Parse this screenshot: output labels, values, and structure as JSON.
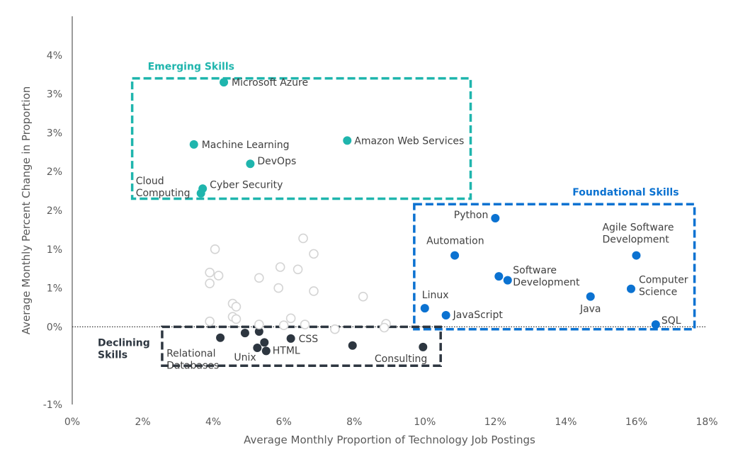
{
  "chart_data": {
    "type": "scatter",
    "xlabel": "Average Monthly Proportion of Technology Job Postings",
    "ylabel": "Average Monthly Percent Change in Proportion",
    "xlim": [
      0,
      18
    ],
    "ylim": [
      -1,
      4
    ],
    "x_ticks": [
      {
        "value": 0,
        "label": "0%"
      },
      {
        "value": 2,
        "label": "2%"
      },
      {
        "value": 4,
        "label": "4%"
      },
      {
        "value": 6,
        "label": "6%"
      },
      {
        "value": 8,
        "label": "8%"
      },
      {
        "value": 10,
        "label": "10%"
      },
      {
        "value": 12,
        "label": "12%"
      },
      {
        "value": 14,
        "label": "14%"
      },
      {
        "value": 16,
        "label": "16%"
      },
      {
        "value": 18,
        "label": "18%"
      }
    ],
    "y_ticks": [
      {
        "value": -1,
        "label": "-1%"
      },
      {
        "value": 0,
        "label": "0%"
      },
      {
        "value": 0.5,
        "label": "1%"
      },
      {
        "value": 1,
        "label": "1%"
      },
      {
        "value": 1.5,
        "label": "2%"
      },
      {
        "value": 2,
        "label": "2%"
      },
      {
        "value": 2.5,
        "label": "3%"
      },
      {
        "value": 3,
        "label": "3%"
      },
      {
        "value": 3.5,
        "label": "4%"
      }
    ],
    "zero_line": true,
    "groups": [
      {
        "key": "emerging",
        "title": "Emerging Skills",
        "color": "#1fb5ad",
        "box": {
          "x0": 1.7,
          "x1": 11.3,
          "y0": 1.65,
          "y1": 3.2
        },
        "points": [
          {
            "label": "Microsoft Azure",
            "x": 4.3,
            "y": 3.15
          },
          {
            "label": "Machine Learning",
            "x": 3.45,
            "y": 2.35
          },
          {
            "label": "Amazon Web Services",
            "x": 7.8,
            "y": 2.4
          },
          {
            "label": "DevOps",
            "x": 5.05,
            "y": 2.1
          },
          {
            "label": "Cyber Security",
            "x": 3.7,
            "y": 1.78
          },
          {
            "label": "Cloud Computing",
            "x": 3.65,
            "y": 1.72
          }
        ]
      },
      {
        "key": "foundational",
        "title": "Foundational Skills",
        "color": "#0b72d1",
        "box": {
          "x0": 9.7,
          "x1": 17.65,
          "y0": -0.03,
          "y1": 1.58
        },
        "points": [
          {
            "label": "Python",
            "x": 12.0,
            "y": 1.4
          },
          {
            "label": "Automation",
            "x": 10.85,
            "y": 0.92
          },
          {
            "label": "Agile Software Development",
            "x": 16.0,
            "y": 0.92
          },
          {
            "label": "Software Development",
            "x": 12.1,
            "y": 0.65
          },
          {
            "label": "",
            "x": 12.35,
            "y": 0.6
          },
          {
            "label": "Computer Science",
            "x": 15.85,
            "y": 0.49
          },
          {
            "label": "Java",
            "x": 14.7,
            "y": 0.39
          },
          {
            "label": "Linux",
            "x": 10.0,
            "y": 0.24
          },
          {
            "label": "JavaScript",
            "x": 10.6,
            "y": 0.15
          },
          {
            "label": "SQL",
            "x": 16.55,
            "y": 0.03
          }
        ]
      },
      {
        "key": "declining",
        "title": "Declining Skills",
        "color": "#2d3640",
        "box": {
          "x0": 2.55,
          "x1": 10.45,
          "y0": -0.5,
          "y1": 0.0
        },
        "points": [
          {
            "label": "Relational Databases",
            "x": 4.2,
            "y": -0.14
          },
          {
            "label": "",
            "x": 4.9,
            "y": -0.08
          },
          {
            "label": "",
            "x": 5.3,
            "y": -0.06
          },
          {
            "label": "",
            "x": 5.45,
            "y": -0.2
          },
          {
            "label": "Unix",
            "x": 5.25,
            "y": -0.27
          },
          {
            "label": "HTML",
            "x": 5.5,
            "y": -0.31
          },
          {
            "label": "CSS",
            "x": 6.2,
            "y": -0.15
          },
          {
            "label": "",
            "x": 7.95,
            "y": -0.24
          },
          {
            "label": "Consulting",
            "x": 9.95,
            "y": -0.26
          }
        ]
      },
      {
        "key": "other",
        "title": "",
        "color": "#d4d4d4",
        "box": null,
        "points": [
          {
            "label": "",
            "x": 4.05,
            "y": 1.0
          },
          {
            "label": "",
            "x": 6.55,
            "y": 1.14
          },
          {
            "label": "",
            "x": 6.85,
            "y": 0.94
          },
          {
            "label": "",
            "x": 3.9,
            "y": 0.7
          },
          {
            "label": "",
            "x": 4.15,
            "y": 0.66
          },
          {
            "label": "",
            "x": 3.9,
            "y": 0.56
          },
          {
            "label": "",
            "x": 5.9,
            "y": 0.77
          },
          {
            "label": "",
            "x": 6.4,
            "y": 0.74
          },
          {
            "label": "",
            "x": 5.3,
            "y": 0.63
          },
          {
            "label": "",
            "x": 5.85,
            "y": 0.5
          },
          {
            "label": "",
            "x": 6.85,
            "y": 0.46
          },
          {
            "label": "",
            "x": 8.25,
            "y": 0.39
          },
          {
            "label": "",
            "x": 4.55,
            "y": 0.3
          },
          {
            "label": "",
            "x": 4.65,
            "y": 0.26
          },
          {
            "label": "",
            "x": 4.55,
            "y": 0.13
          },
          {
            "label": "",
            "x": 4.65,
            "y": 0.1
          },
          {
            "label": "",
            "x": 6.2,
            "y": 0.11
          },
          {
            "label": "",
            "x": 3.9,
            "y": 0.07
          },
          {
            "label": "",
            "x": 5.3,
            "y": 0.03
          },
          {
            "label": "",
            "x": 6.6,
            "y": 0.03
          },
          {
            "label": "",
            "x": 7.45,
            "y": -0.03
          },
          {
            "label": "",
            "x": 8.9,
            "y": 0.04
          },
          {
            "label": "",
            "x": 8.85,
            "y": -0.01
          },
          {
            "label": "",
            "x": 6.0,
            "y": 0.02
          }
        ]
      }
    ]
  }
}
